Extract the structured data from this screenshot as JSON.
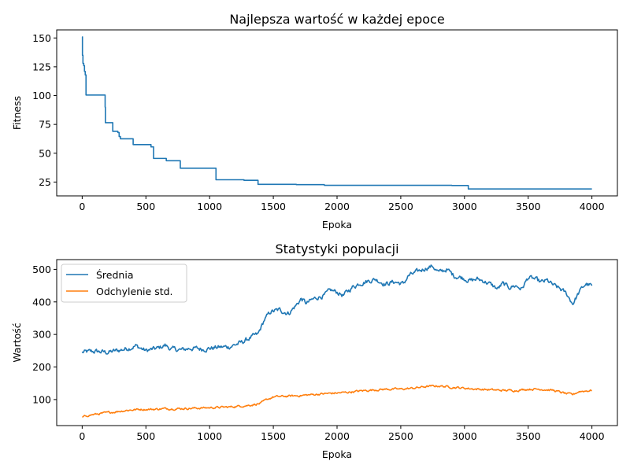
{
  "chart_data": [
    {
      "type": "line",
      "title": "Najlepsza wartość w każdej epoce",
      "xlabel": "Epoka",
      "ylabel": "Fitness",
      "xlim": [
        -200,
        4200
      ],
      "ylim": [
        13,
        157
      ],
      "xticks": [
        0,
        500,
        1000,
        1500,
        2000,
        2500,
        3000,
        3500,
        4000
      ],
      "yticks": [
        25,
        50,
        75,
        100,
        125,
        150
      ],
      "grid": false,
      "step": true,
      "series": [
        {
          "color": "#1f77b4",
          "x": [
            0,
            2,
            6,
            12,
            18,
            24,
            30,
            180,
            182,
            186,
            240,
            280,
            290,
            300,
            400,
            540,
            560,
            660,
            770,
            1050,
            1270,
            1380,
            1680,
            1900,
            2900,
            3030,
            4000
          ],
          "y": [
            151,
            135,
            128,
            126,
            121,
            118,
            100.5,
            90,
            76.5,
            76.5,
            69,
            68,
            64.5,
            62.5,
            57.5,
            55.5,
            45.5,
            43.5,
            37,
            27,
            26.5,
            23,
            22.8,
            22.2,
            22,
            19,
            19
          ]
        }
      ]
    },
    {
      "type": "line",
      "title": "Statystyki populacji",
      "xlabel": "Epoka",
      "ylabel": "Wartość",
      "xlim": [
        -200,
        4200
      ],
      "ylim": [
        20,
        530
      ],
      "xticks": [
        0,
        500,
        1000,
        1500,
        2000,
        2500,
        3000,
        3500,
        4000
      ],
      "yticks": [
        100,
        200,
        300,
        400,
        500
      ],
      "grid": false,
      "legend": "top-left",
      "series": [
        {
          "name": "Średnia",
          "color": "#1f77b4",
          "noise": 6,
          "x": [
            0,
            100,
            200,
            300,
            380,
            420,
            500,
            600,
            650,
            700,
            780,
            850,
            950,
            1050,
            1150,
            1250,
            1320,
            1380,
            1430,
            1480,
            1550,
            1620,
            1680,
            1720,
            1760,
            1800,
            1850,
            1900,
            1950,
            2000,
            2050,
            2120,
            2180,
            2250,
            2300,
            2380,
            2450,
            2520,
            2560,
            2620,
            2700,
            2750,
            2800,
            2860,
            2920,
            2980,
            3050,
            3100,
            3150,
            3200,
            3260,
            3300,
            3350,
            3400,
            3450,
            3500,
            3550,
            3600,
            3650,
            3700,
            3750,
            3800,
            3850,
            3900,
            3950,
            4000
          ],
          "y": [
            245,
            248,
            245,
            252,
            260,
            265,
            250,
            258,
            267,
            255,
            252,
            258,
            255,
            260,
            262,
            275,
            290,
            300,
            345,
            370,
            375,
            365,
            390,
            410,
            395,
            405,
            415,
            420,
            435,
            430,
            420,
            445,
            458,
            465,
            470,
            455,
            462,
            455,
            480,
            490,
            505,
            510,
            490,
            500,
            480,
            475,
            465,
            470,
            465,
            455,
            440,
            455,
            445,
            450,
            440,
            475,
            470,
            460,
            465,
            450,
            440,
            425,
            395,
            430,
            455,
            450
          ]
        },
        {
          "name": "Odchylenie std.",
          "color": "#ff7f0e",
          "noise": 2.5,
          "x": [
            0,
            50,
            150,
            250,
            350,
            450,
            550,
            650,
            750,
            850,
            1000,
            1150,
            1300,
            1400,
            1450,
            1500,
            1600,
            1700,
            1800,
            1900,
            2000,
            2100,
            2200,
            2300,
            2400,
            2500,
            2600,
            2700,
            2800,
            2900,
            3000,
            3100,
            3200,
            3300,
            3400,
            3500,
            3600,
            3700,
            3800,
            3850,
            3900,
            4000
          ],
          "y": [
            45,
            52,
            57,
            62,
            67,
            70,
            70,
            72,
            72,
            73,
            75,
            77,
            82,
            88,
            100,
            108,
            110,
            112,
            115,
            118,
            120,
            123,
            127,
            130,
            132,
            132,
            135,
            140,
            142,
            138,
            135,
            132,
            130,
            128,
            128,
            132,
            132,
            128,
            118,
            115,
            125,
            128
          ]
        }
      ]
    }
  ]
}
